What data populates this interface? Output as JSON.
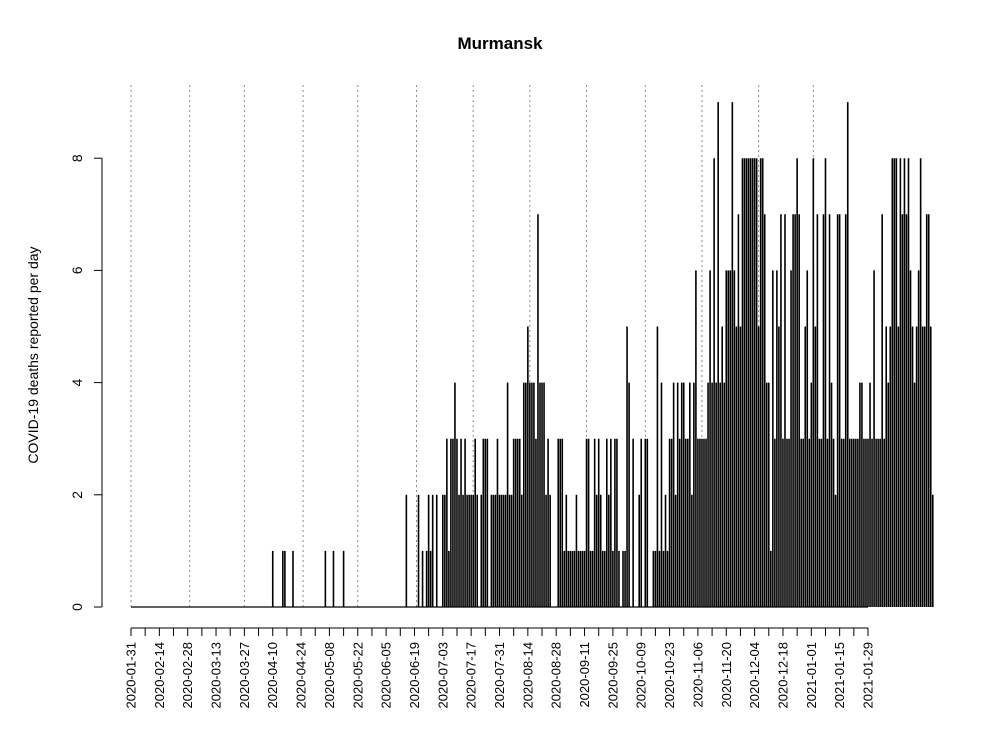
{
  "chart_data": {
    "type": "bar",
    "title": "Murmansk",
    "xlabel": "",
    "ylabel": "COVID-19 deaths reported per day",
    "x_start": "2020-01-31",
    "x_end": "2021-01-29",
    "ylim": [
      0,
      9
    ],
    "y_ticks": [
      0,
      2,
      4,
      6,
      8
    ],
    "x_tick_labels": [
      "2020-01-31",
      "2020-02-14",
      "2020-02-28",
      "2020-03-13",
      "2020-03-27",
      "2020-04-10",
      "2020-04-24",
      "2020-05-08",
      "2020-05-22",
      "2020-06-05",
      "2020-06-19",
      "2020-07-03",
      "2020-07-17",
      "2020-07-31",
      "2020-08-14",
      "2020-08-28",
      "2020-09-11",
      "2020-09-25",
      "2020-10-09",
      "2020-10-23",
      "2020-11-06",
      "2020-11-20",
      "2020-12-04",
      "2020-12-18",
      "2021-01-01",
      "2021-01-15",
      "2021-01-29"
    ],
    "gridlines_x": [
      "2020-01-31",
      "2020-02-29",
      "2020-03-27",
      "2020-04-25",
      "2020-05-22",
      "2020-06-20",
      "2020-07-18",
      "2020-08-15",
      "2020-09-12",
      "2020-10-11",
      "2020-11-08",
      "2020-12-06",
      "2021-01-02"
    ],
    "grid": "vertical dotted",
    "values": [
      0,
      0,
      0,
      0,
      0,
      0,
      0,
      0,
      0,
      0,
      0,
      0,
      0,
      0,
      0,
      0,
      0,
      0,
      0,
      0,
      0,
      0,
      0,
      0,
      0,
      0,
      0,
      0,
      0,
      0,
      0,
      0,
      0,
      0,
      0,
      0,
      0,
      0,
      0,
      0,
      0,
      0,
      0,
      0,
      0,
      0,
      0,
      0,
      0,
      0,
      0,
      0,
      0,
      0,
      0,
      0,
      0,
      0,
      0,
      0,
      0,
      0,
      0,
      0,
      0,
      0,
      0,
      0,
      0,
      0,
      1,
      0,
      0,
      0,
      0,
      1,
      1,
      0,
      0,
      0,
      1,
      0,
      0,
      0,
      0,
      0,
      0,
      0,
      0,
      0,
      0,
      0,
      0,
      0,
      0,
      0,
      1,
      0,
      0,
      0,
      1,
      0,
      0,
      0,
      0,
      1,
      0,
      0,
      0,
      0,
      0,
      0,
      0,
      0,
      0,
      0,
      0,
      0,
      0,
      0,
      0,
      0,
      0,
      0,
      0,
      0,
      0,
      0,
      0,
      0,
      0,
      0,
      0,
      0,
      0,
      0,
      2,
      0,
      0,
      0,
      0,
      0,
      2,
      0,
      1,
      0,
      1,
      2,
      1,
      2,
      0,
      2,
      0,
      0,
      2,
      2,
      3,
      1,
      3,
      3,
      4,
      3,
      2,
      3,
      2,
      3,
      2,
      2,
      2,
      2,
      3,
      2,
      0,
      2,
      3,
      3,
      3,
      0,
      2,
      2,
      2,
      3,
      2,
      2,
      2,
      2,
      4,
      2,
      2,
      3,
      3,
      3,
      3,
      2,
      4,
      4,
      5,
      4,
      4,
      4,
      3,
      7,
      4,
      4,
      4,
      2,
      3,
      2,
      0,
      0,
      0,
      3,
      3,
      3,
      1,
      2,
      1,
      1,
      1,
      1,
      2,
      1,
      1,
      1,
      1,
      3,
      3,
      1,
      1,
      3,
      2,
      3,
      2,
      1,
      1,
      3,
      2,
      3,
      1,
      3,
      3,
      1,
      0,
      1,
      1,
      5,
      4,
      0,
      3,
      0,
      0,
      2,
      3,
      0,
      3,
      3,
      0,
      0,
      1,
      1,
      5,
      1,
      4,
      1,
      2,
      1,
      3,
      3,
      4,
      2,
      4,
      3,
      4,
      4,
      3,
      3,
      4,
      2,
      4,
      6,
      3,
      3,
      3,
      3,
      3,
      4,
      6,
      4,
      8,
      4,
      9,
      4,
      5,
      4,
      6,
      6,
      6,
      9,
      6,
      5,
      7,
      5,
      8,
      8,
      8,
      8,
      8,
      8,
      8,
      8,
      5,
      8,
      8,
      7,
      4,
      4,
      1,
      6,
      3,
      6,
      5,
      7,
      3,
      7,
      3,
      3,
      6,
      7,
      7,
      8,
      7,
      3,
      3,
      5,
      6,
      3,
      4,
      8,
      5,
      7,
      3,
      3,
      7,
      8,
      3,
      7,
      4,
      3,
      2,
      7,
      7,
      3,
      3,
      7,
      9,
      3,
      3,
      3,
      3,
      3,
      4,
      4,
      3,
      3,
      3,
      4,
      3,
      6,
      3,
      3,
      3,
      7,
      3,
      5,
      4,
      5,
      8,
      8,
      8,
      5,
      8,
      7,
      8,
      7,
      8,
      6,
      5,
      4,
      5,
      6,
      8,
      5,
      5,
      7,
      7,
      5,
      2
    ]
  }
}
